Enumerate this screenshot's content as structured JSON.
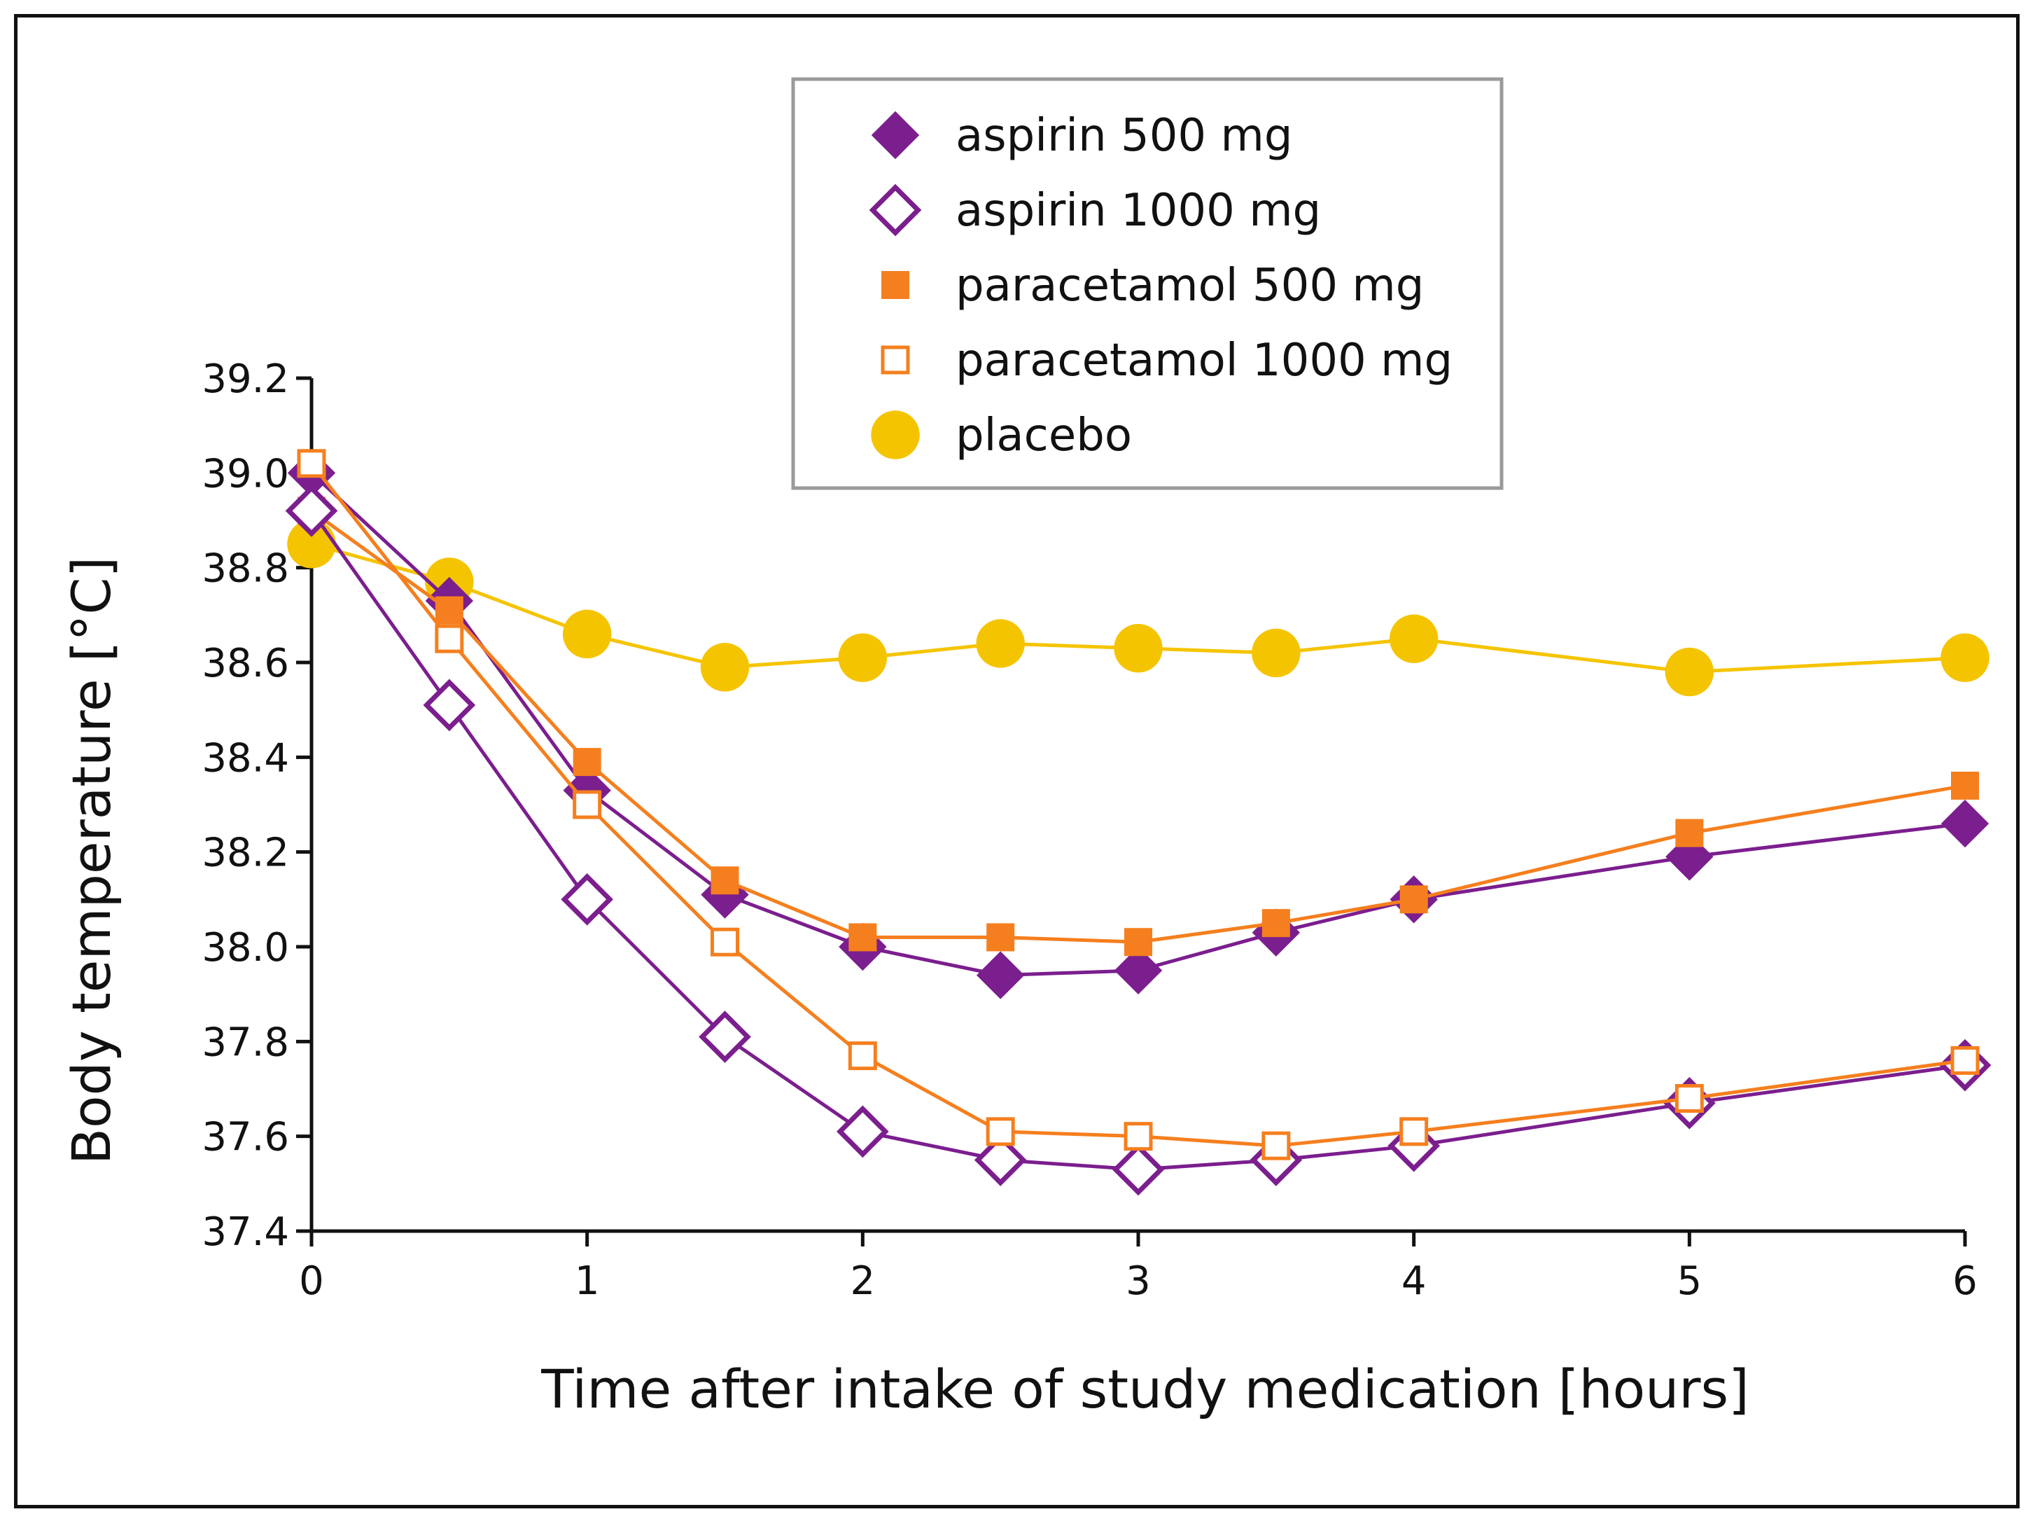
{
  "chart_data": {
    "type": "line",
    "title": "",
    "xlabel": "Time after intake of study medication [hours]",
    "ylabel": "Body temperature [°C]",
    "xlim": [
      0,
      6
    ],
    "ylim": [
      37.4,
      39.2
    ],
    "xticks": [
      0,
      1,
      2,
      3,
      4,
      5,
      6
    ],
    "xtick_labels": [
      "0",
      "1",
      "2",
      "3",
      "4",
      "5",
      "6"
    ],
    "yticks": [
      37.4,
      37.6,
      37.8,
      38.0,
      38.2,
      38.4,
      38.6,
      38.8,
      39.0,
      39.2
    ],
    "ytick_labels": [
      "37.4",
      "37.6",
      "37.8",
      "38.0",
      "38.2",
      "38.4",
      "38.6",
      "38.8",
      "39.0",
      "39.2"
    ],
    "grid": false,
    "legend_position": "top-center",
    "x": [
      0,
      0.5,
      1,
      1.5,
      2,
      2.5,
      3,
      3.5,
      4,
      5,
      6
    ],
    "series": [
      {
        "name": "placebo",
        "color": "#f5c400",
        "marker": "circle",
        "filled": true,
        "values": [
          38.85,
          38.77,
          38.66,
          38.59,
          38.61,
          38.64,
          38.63,
          38.62,
          38.65,
          38.58,
          38.61
        ]
      },
      {
        "name": "aspirin 500 mg",
        "color": "#7b1e8e",
        "marker": "diamond",
        "filled": true,
        "values": [
          39.0,
          38.73,
          38.33,
          38.11,
          38.0,
          37.94,
          37.95,
          38.03,
          38.1,
          38.19,
          38.26
        ]
      },
      {
        "name": "paracetamol 500 mg",
        "color": "#f57f1e",
        "marker": "square",
        "filled": true,
        "values": [
          38.92,
          38.71,
          38.39,
          38.14,
          38.02,
          38.02,
          38.01,
          38.05,
          38.1,
          38.24,
          38.34
        ]
      },
      {
        "name": "aspirin 1000 mg",
        "color": "#7b1e8e",
        "marker": "diamond",
        "filled": false,
        "values": [
          38.92,
          38.51,
          38.1,
          37.81,
          37.61,
          37.55,
          37.53,
          37.55,
          37.58,
          37.67,
          37.75
        ]
      },
      {
        "name": "paracetamol 1000 mg",
        "color": "#f57f1e",
        "marker": "square",
        "filled": false,
        "values": [
          39.02,
          38.65,
          38.3,
          38.01,
          37.77,
          37.61,
          37.6,
          37.58,
          37.61,
          37.68,
          37.76
        ]
      }
    ],
    "legend_order": [
      "aspirin 500 mg",
      "aspirin 1000 mg",
      "paracetamol 500 mg",
      "paracetamol 1000 mg",
      "placebo"
    ]
  }
}
